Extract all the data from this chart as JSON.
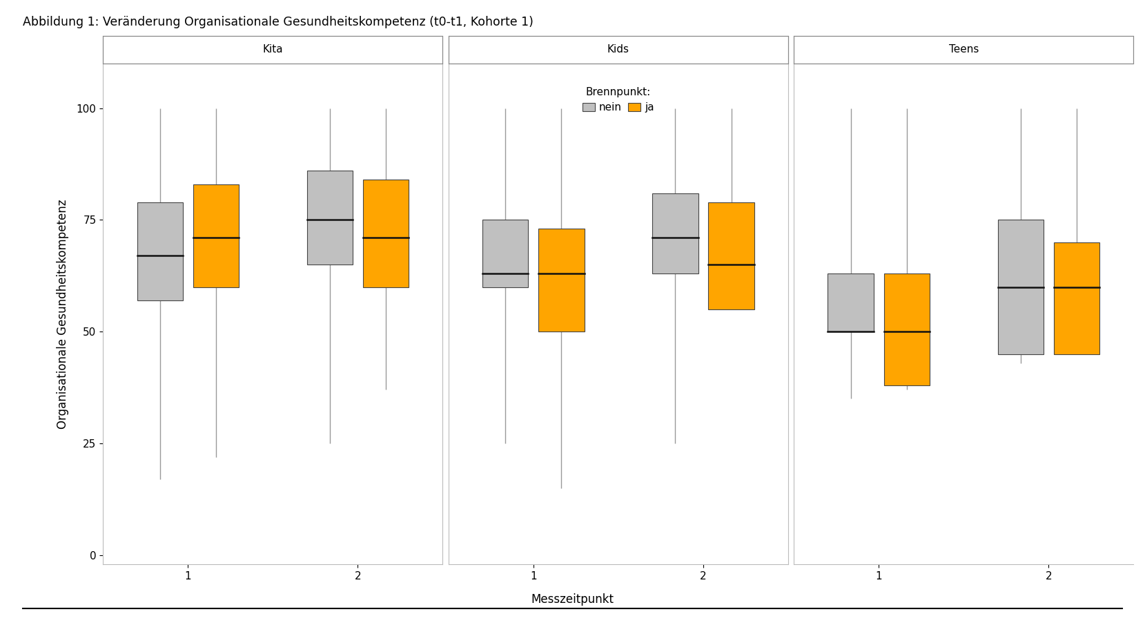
{
  "title": "Abbildung 1: Veränderung Organisationale Gesundheitskompetenz (t0-t1, Kohorte 1)",
  "ylabel": "Organisationale Gesundheitskompetenz",
  "xlabel": "Messzeitpunkt",
  "panels": [
    "Kita",
    "Kids",
    "Teens"
  ],
  "xtick_labels": [
    "1",
    "2"
  ],
  "yticks": [
    0,
    25,
    50,
    75,
    100
  ],
  "ylim": [
    -2,
    110
  ],
  "color_nein": "#c0c0c0",
  "color_ja": "#FFA500",
  "color_median": "#111111",
  "box_edge_color": "#444444",
  "whisker_color": "#999999",
  "facet_fill": "#f5f5f5",
  "facet_edge": "#aaaaaa",
  "legend_label_nein": "nein",
  "legend_label_ja": "ja",
  "legend_title": "Brennpunkt:",
  "boxes": {
    "Kita": {
      "t1": {
        "nein": {
          "whislo": 17,
          "q1": 57,
          "med": 67,
          "q3": 79,
          "whishi": 100
        },
        "ja": {
          "whislo": 22,
          "q1": 60,
          "med": 71,
          "q3": 83,
          "whishi": 100
        }
      },
      "t2": {
        "nein": {
          "whislo": 25,
          "q1": 65,
          "med": 75,
          "q3": 86,
          "whishi": 100
        },
        "ja": {
          "whislo": 37,
          "q1": 60,
          "med": 71,
          "q3": 84,
          "whishi": 100
        }
      }
    },
    "Kids": {
      "t1": {
        "nein": {
          "whislo": 25,
          "q1": 60,
          "med": 63,
          "q3": 75,
          "whishi": 100
        },
        "ja": {
          "whislo": 15,
          "q1": 50,
          "med": 63,
          "q3": 73,
          "whishi": 100
        }
      },
      "t2": {
        "nein": {
          "whislo": 25,
          "q1": 63,
          "med": 71,
          "q3": 81,
          "whishi": 100
        },
        "ja": {
          "whislo": 55,
          "q1": 55,
          "med": 65,
          "q3": 79,
          "whishi": 100
        }
      }
    },
    "Teens": {
      "t1": {
        "nein": {
          "whislo": 35,
          "q1": 50,
          "med": 50,
          "q3": 63,
          "whishi": 100
        },
        "ja": {
          "whislo": 37,
          "q1": 38,
          "med": 50,
          "q3": 63,
          "whishi": 100
        }
      },
      "t2": {
        "nein": {
          "whislo": 43,
          "q1": 45,
          "med": 60,
          "q3": 75,
          "whishi": 100
        },
        "ja": {
          "whislo": 45,
          "q1": 45,
          "med": 60,
          "q3": 70,
          "whishi": 100
        }
      }
    }
  }
}
